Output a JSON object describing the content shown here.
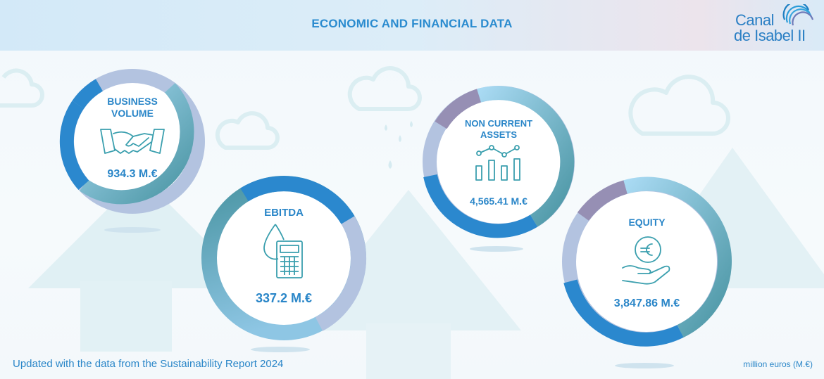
{
  "header": {
    "title": "ECONOMIC AND FINANCIAL DATA",
    "logo_line1": "Canal",
    "logo_line2": "de Isabel II"
  },
  "metrics": [
    {
      "label_lines": [
        "BUSINESS",
        "VOLUME"
      ],
      "value": "934.3 M.€",
      "icon": "handshake-icon"
    },
    {
      "label_lines": [
        "EBITDA"
      ],
      "value": "337.2 M.€",
      "icon": "water-drop-calculator-icon"
    },
    {
      "label_lines": [
        "NON CURRENT",
        "ASSETS"
      ],
      "value": "4,565.41 M.€",
      "icon": "bar-chart-line-icon"
    },
    {
      "label_lines": [
        "EQUITY"
      ],
      "value": "3,847.86 M.€",
      "icon": "euro-coin-hand-icon"
    }
  ],
  "footer": {
    "note": "Updated with the data from the Sustainability Report 2024",
    "units": "million euros (M.€)"
  },
  "colors": {
    "primary_blue": "#2a86c8",
    "ring_blue": "#2b88ce",
    "ring_teal": "#4a95a3",
    "ring_lavender": "#b3c3e0",
    "ring_light_blue": "#a9daf3",
    "ring_purple": "#968fb4"
  }
}
